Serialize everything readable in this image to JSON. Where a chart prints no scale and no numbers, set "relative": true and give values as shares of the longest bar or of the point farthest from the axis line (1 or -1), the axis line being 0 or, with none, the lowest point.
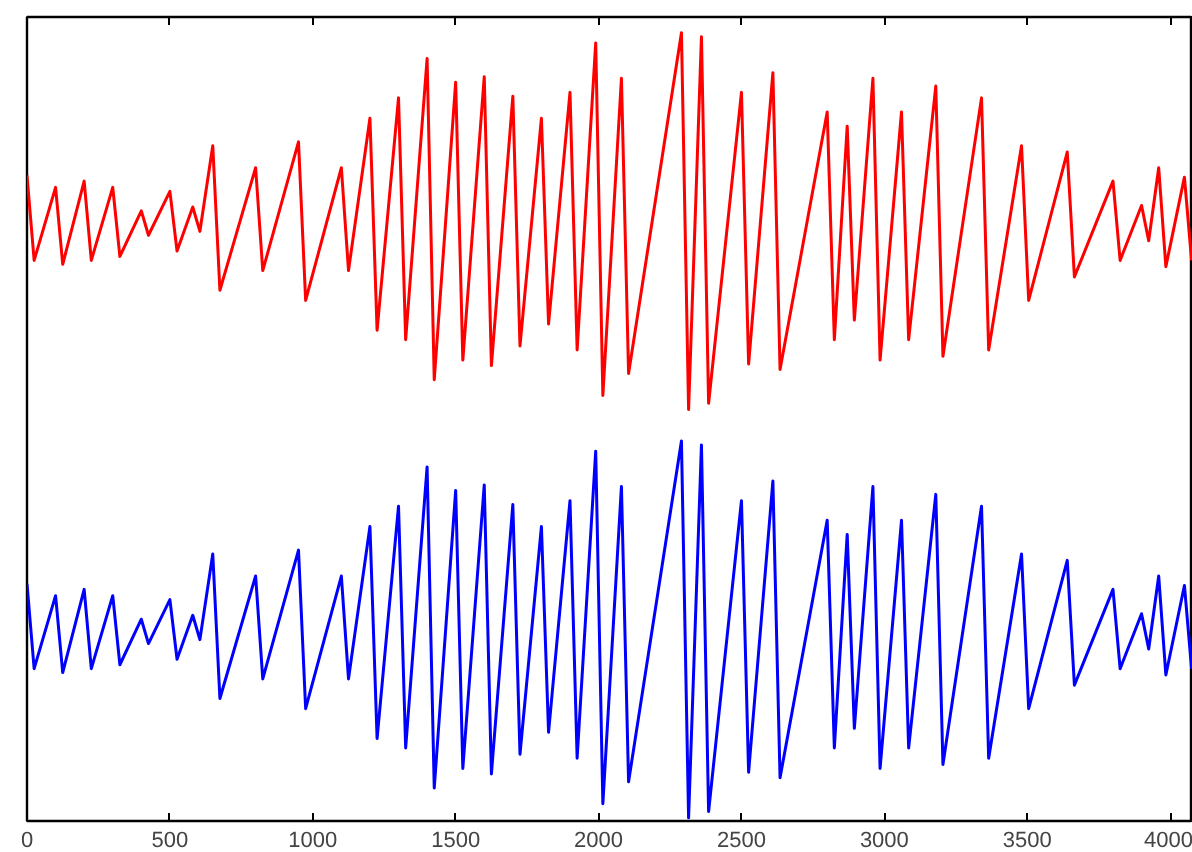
{
  "chart_data": {
    "type": "line",
    "relative": true,
    "tick_labels": "x",
    "grid": false,
    "marker": "none",
    "line_style": "solid",
    "x": [
      0,
      25,
      100,
      125,
      200,
      225,
      300,
      325,
      400,
      425,
      500,
      525,
      580,
      605,
      650,
      675,
      800,
      825,
      950,
      975,
      1100,
      1125,
      1200,
      1225,
      1300,
      1325,
      1400,
      1425,
      1500,
      1525,
      1600,
      1625,
      1700,
      1725,
      1800,
      1825,
      1900,
      1925,
      1990,
      2015,
      2080,
      2105,
      2290,
      2315,
      2360,
      2385,
      2500,
      2525,
      2610,
      2635,
      2800,
      2825,
      2870,
      2895,
      2960,
      2985,
      3060,
      3085,
      3180,
      3205,
      3340,
      3365,
      3480,
      3505,
      3640,
      3665,
      3800,
      3825,
      3900,
      3925,
      3960,
      3985,
      4050,
      4075
    ],
    "xlim": [
      0,
      4080
    ],
    "xticks": [
      0,
      500,
      1000,
      1500,
      2000,
      2500,
      3000,
      3500,
      4000
    ],
    "series": [
      {
        "color": "#ff0000",
        "values": [
          0.818,
          0.71,
          0.803,
          0.705,
          0.811,
          0.71,
          0.803,
          0.715,
          0.773,
          0.742,
          0.798,
          0.722,
          0.778,
          0.747,
          0.856,
          0.672,
          0.828,
          0.697,
          0.861,
          0.659,
          0.828,
          0.697,
          0.891,
          0.621,
          0.917,
          0.609,
          0.967,
          0.558,
          0.937,
          0.583,
          0.944,
          0.576,
          0.919,
          0.601,
          0.891,
          0.629,
          0.924,
          0.596,
          0.987,
          0.538,
          0.942,
          0.566,
          1.0,
          0.52,
          0.995,
          0.528,
          0.924,
          0.578,
          0.949,
          0.571,
          0.899,
          0.609,
          0.881,
          0.634,
          0.942,
          0.583,
          0.899,
          0.609,
          0.932,
          0.588,
          0.917,
          0.596,
          0.856,
          0.659,
          0.848,
          0.689,
          0.811,
          0.71,
          0.78,
          0.735,
          0.828,
          0.702,
          0.816,
          0.71
        ]
      },
      {
        "color": "#0000ff",
        "values": [
          0.298,
          0.19,
          0.283,
          0.185,
          0.291,
          0.19,
          0.283,
          0.195,
          0.253,
          0.222,
          0.278,
          0.202,
          0.258,
          0.227,
          0.336,
          0.152,
          0.308,
          0.177,
          0.341,
          0.139,
          0.308,
          0.177,
          0.371,
          0.101,
          0.397,
          0.089,
          0.447,
          0.038,
          0.417,
          0.063,
          0.424,
          0.056,
          0.399,
          0.081,
          0.371,
          0.109,
          0.404,
          0.076,
          0.467,
          0.018,
          0.422,
          0.046,
          0.48,
          0.0,
          0.475,
          0.008,
          0.404,
          0.058,
          0.429,
          0.051,
          0.379,
          0.089,
          0.361,
          0.114,
          0.422,
          0.063,
          0.379,
          0.089,
          0.412,
          0.068,
          0.397,
          0.076,
          0.336,
          0.139,
          0.328,
          0.169,
          0.291,
          0.19,
          0.26,
          0.215,
          0.308,
          0.182,
          0.296,
          0.19
        ]
      }
    ]
  }
}
